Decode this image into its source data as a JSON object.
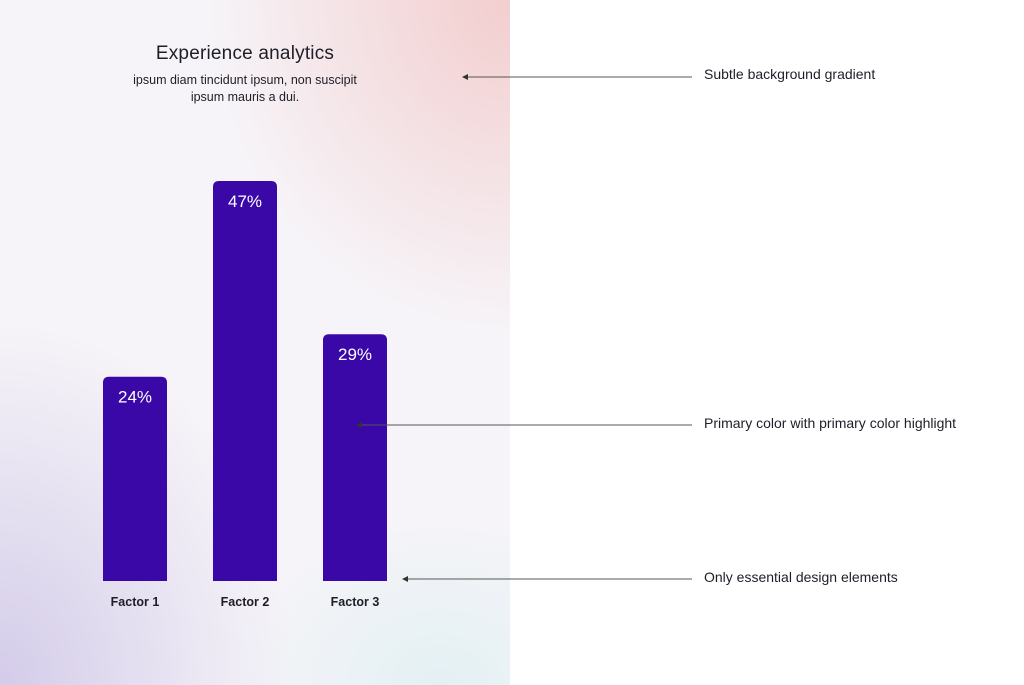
{
  "chart_data": {
    "type": "bar",
    "title": "Experience analytics",
    "subtitle": "ipsum diam tincidunt ipsum, non suscipit ipsum mauris a dui.",
    "categories": [
      "Factor 1",
      "Factor 2",
      "Factor 3"
    ],
    "values": [
      24,
      47,
      29
    ],
    "value_labels": [
      "24%",
      "47%",
      "29%"
    ],
    "xlabel": "",
    "ylabel": "",
    "ylim": [
      0,
      47
    ],
    "grid": false,
    "bar_color": "#3b08a8",
    "value_label_color": "#ffffff"
  },
  "callouts": [
    {
      "text": "Subtle background gradient"
    },
    {
      "text": "Primary color with primary color highlight"
    },
    {
      "text": "Only essential design elements"
    }
  ]
}
